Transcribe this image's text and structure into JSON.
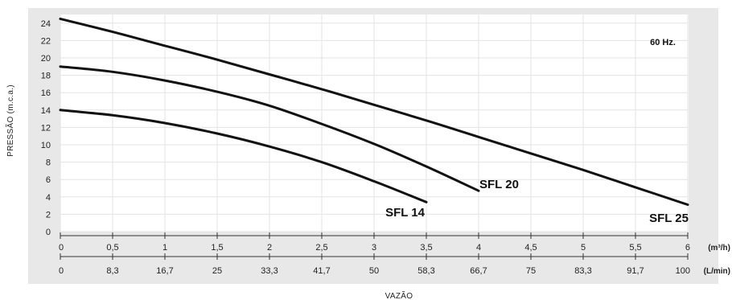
{
  "chart_data": {
    "type": "line",
    "frequency_label": "60 Hz.",
    "ylabel": "PRESSÃO (m.c.a.)",
    "xlabel": "VAZÃO",
    "ylim": [
      0,
      25
    ],
    "yticks": [
      "0",
      "2",
      "4",
      "6",
      "8",
      "10",
      "12",
      "14",
      "16",
      "18",
      "20",
      "22",
      "24"
    ],
    "x_primary": {
      "unit": "(m³/h)",
      "ticks": [
        "0",
        "0,5",
        "1",
        "1,5",
        "2",
        "2,5",
        "3",
        "3,5",
        "4",
        "4,5",
        "5",
        "5,5",
        "6"
      ]
    },
    "x_secondary": {
      "unit": "(L/min)",
      "ticks": [
        "0",
        "8,3",
        "16,7",
        "25",
        "33,3",
        "41,7",
        "50",
        "58,3",
        "66,7",
        "75",
        "83,3",
        "91,7",
        "100"
      ]
    },
    "xlim": [
      0,
      6
    ],
    "grid": true,
    "colors": {
      "background": "#e8e8e8",
      "plot": "#ffffff",
      "line": "#111111",
      "grid": "#e3e3e3"
    },
    "series": [
      {
        "name": "SFL 14",
        "x": [
          0,
          0.5,
          1,
          1.5,
          2,
          2.5,
          3,
          3.5
        ],
        "y": [
          14,
          13.4,
          12.5,
          11.3,
          9.8,
          8,
          5.8,
          3.4
        ]
      },
      {
        "name": "SFL 20",
        "x": [
          0,
          0.5,
          1,
          1.5,
          2,
          2.5,
          3,
          3.5,
          4
        ],
        "y": [
          19,
          18.4,
          17.4,
          16.1,
          14.5,
          12.4,
          10.1,
          7.5,
          4.7
        ]
      },
      {
        "name": "SFL 25",
        "x": [
          0,
          0.5,
          1,
          1.5,
          2,
          2.5,
          3,
          3.5,
          4,
          4.5,
          5,
          5.5,
          6
        ],
        "y": [
          24.5,
          23,
          21.4,
          19.8,
          18.1,
          16.4,
          14.6,
          12.8,
          10.9,
          9,
          7.1,
          5.1,
          3.1
        ]
      }
    ]
  }
}
